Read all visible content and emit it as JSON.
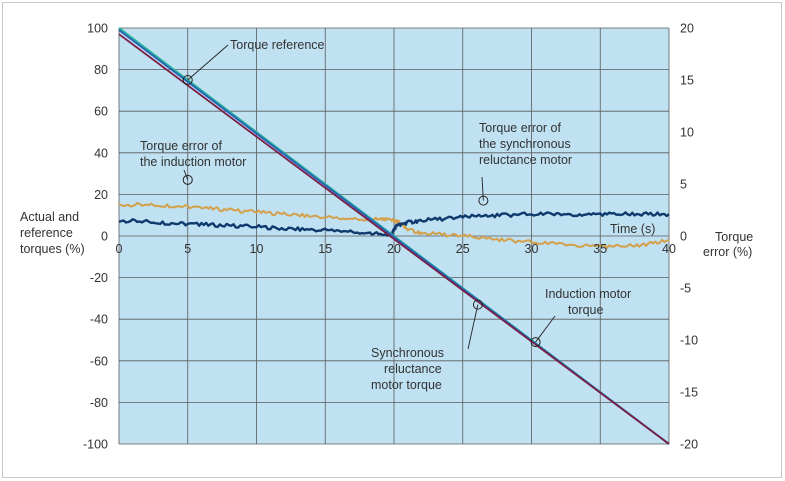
{
  "chart_data": {
    "type": "line",
    "title": "",
    "xlabel": "Time (s)",
    "ylabel_left": [
      "Actual and",
      "reference",
      "torques (%)"
    ],
    "ylabel_right": [
      "Torque",
      "error (%)"
    ],
    "xlim": [
      0,
      40
    ],
    "ylim_left": [
      -100,
      100
    ],
    "ylim_right": [
      -20,
      20
    ],
    "x_ticks": [
      "0",
      "5",
      "10",
      "15",
      "20",
      "25",
      "30",
      "35",
      "40"
    ],
    "y_left_ticks": [
      "100",
      "80",
      "60",
      "40",
      "20",
      "0",
      "-20",
      "-40",
      "-60",
      "-80",
      "-100"
    ],
    "y_right_ticks": [
      "20",
      "15",
      "10",
      "5",
      "0",
      "-5",
      "-10",
      "-15",
      "-20"
    ],
    "grid": true,
    "colors": {
      "plot_bg": "#bfe1f2",
      "grid": "#5a5a5a",
      "torque_reference": "#1fb39a",
      "induction_motor_torque": "#2a5fb5",
      "synchronous_reluctance_motor_torque": "#7a1f45",
      "torque_error_induction": "#d4a04a",
      "torque_error_synchronous": "#0f3a6e"
    },
    "series": [
      {
        "key": "torque_reference",
        "axis": "left",
        "x": [
          0,
          40
        ],
        "y": [
          100,
          -100
        ]
      },
      {
        "key": "induction_motor_torque",
        "axis": "left",
        "x": [
          0,
          40
        ],
        "y": [
          99,
          -100
        ]
      },
      {
        "key": "synchronous_reluctance_motor_torque",
        "axis": "left",
        "x": [
          0,
          40
        ],
        "y": [
          97,
          -100
        ]
      },
      {
        "key": "torque_error_induction",
        "axis": "right",
        "x": [
          0,
          2,
          4,
          6,
          8,
          10,
          12,
          14,
          16,
          18,
          19,
          20,
          20.5,
          21,
          22,
          24,
          26,
          28,
          30,
          32,
          34,
          36,
          38,
          40
        ],
        "y": [
          3.0,
          3.0,
          2.9,
          2.7,
          2.5,
          2.3,
          2.1,
          1.9,
          1.7,
          1.6,
          1.6,
          1.5,
          1.2,
          0.6,
          0.3,
          0.1,
          -0.1,
          -0.4,
          -0.6,
          -0.8,
          -0.9,
          -1.0,
          -0.9,
          -0.4
        ]
      },
      {
        "key": "torque_error_synchronous",
        "axis": "right",
        "x": [
          0,
          2,
          4,
          6,
          8,
          10,
          12,
          14,
          16,
          18,
          19.5,
          19.8,
          20.2,
          21,
          22,
          24,
          26,
          28,
          30,
          32,
          34,
          36,
          38,
          40
        ],
        "y": [
          1.5,
          1.4,
          1.2,
          1.1,
          1.0,
          0.9,
          0.7,
          0.6,
          0.5,
          0.3,
          0.1,
          0.1,
          1.0,
          1.3,
          1.5,
          1.7,
          1.9,
          2.0,
          2.1,
          2.1,
          2.1,
          2.1,
          2.1,
          2.1
        ]
      }
    ],
    "annotations": [
      {
        "key": "ann_torque_reference",
        "lines": [
          "Torque reference"
        ],
        "x": 5,
        "y": 75,
        "axis": "left"
      },
      {
        "key": "ann_error_induction",
        "lines": [
          "Torque error of",
          "the induction motor"
        ],
        "x": 5,
        "y": 5.4,
        "axis": "right"
      },
      {
        "key": "ann_error_synchronous",
        "lines": [
          "Torque error of",
          "the synchronous",
          "reluctance motor"
        ],
        "x": 26.5,
        "y": 3.4,
        "axis": "right"
      },
      {
        "key": "ann_induction_torque",
        "lines": [
          "Induction motor",
          "torque"
        ],
        "x": 30.3,
        "y": -51,
        "axis": "left"
      },
      {
        "key": "ann_synchronous_torque",
        "lines": [
          "Synchronous",
          "reluctance",
          "motor torque"
        ],
        "x": 26.1,
        "y": -33,
        "axis": "left"
      }
    ]
  }
}
